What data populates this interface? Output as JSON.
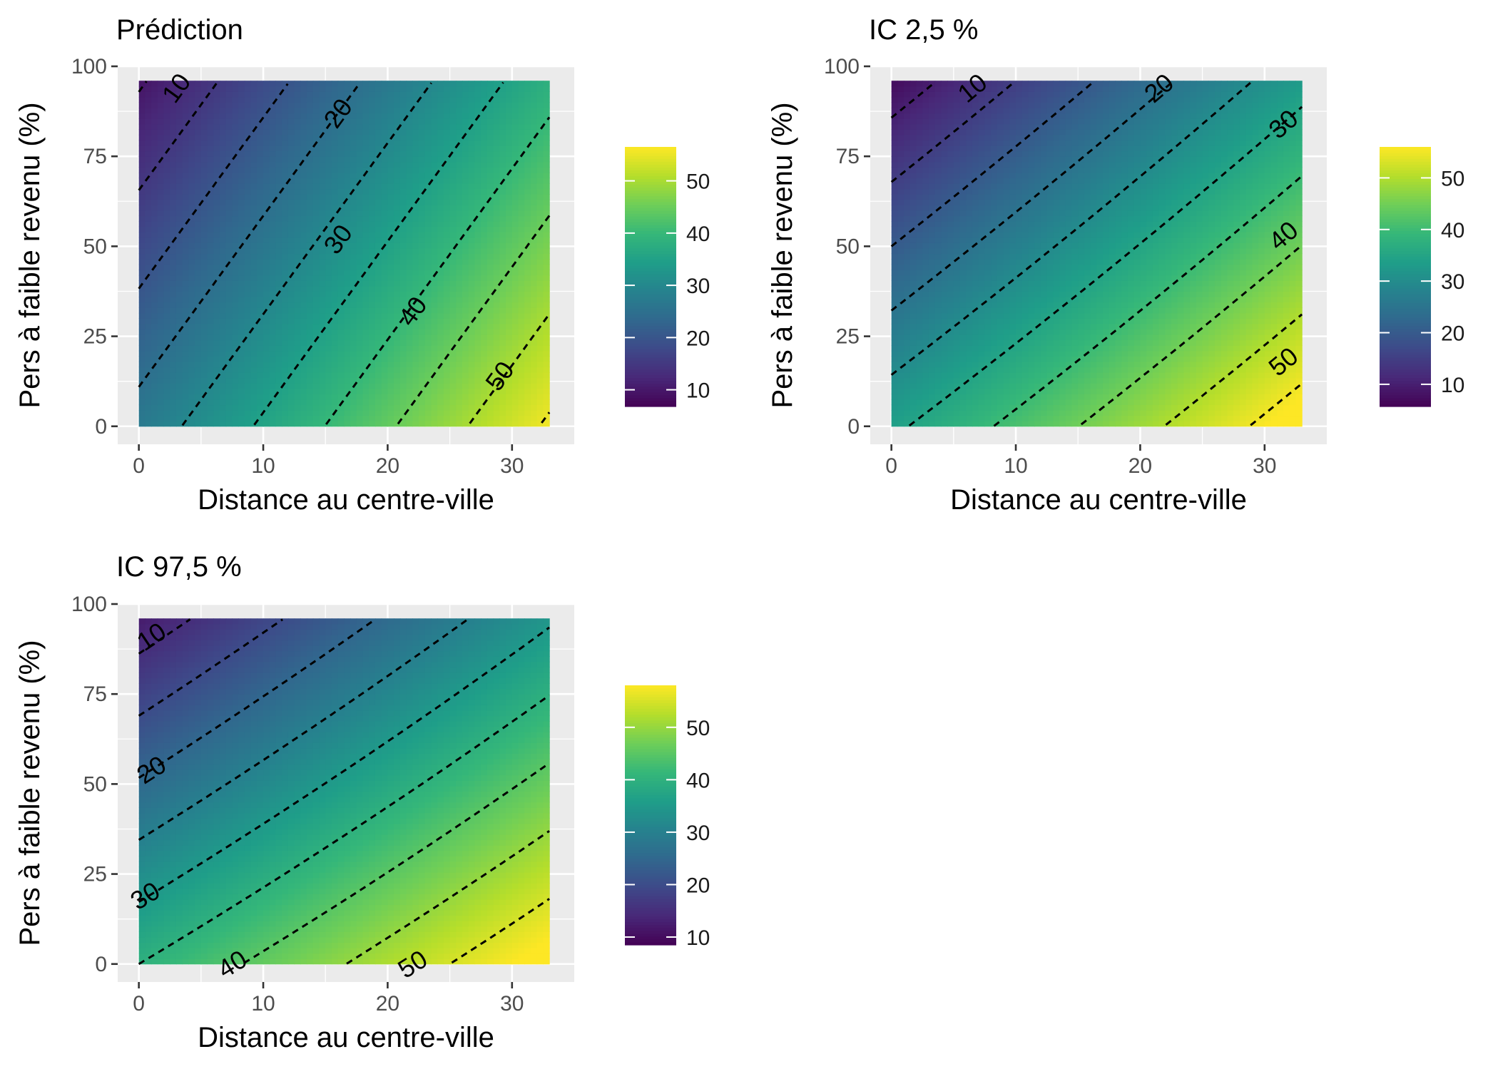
{
  "chart_data": [
    {
      "type": "heatmap",
      "title": "Prédiction",
      "xlabel": "Distance au centre-ville",
      "ylabel": "Pers à faible revenu (%)",
      "xlim": [
        -1.7,
        35
      ],
      "ylim": [
        -5,
        100
      ],
      "xticks": [
        0,
        10,
        20,
        30
      ],
      "yticks": [
        0,
        25,
        50,
        75,
        100
      ],
      "x_range": [
        0,
        33
      ],
      "y_range": [
        0,
        96
      ],
      "surface": {
        "base": 27,
        "per_x": 0.87,
        "per_y": -0.183,
        "curve": 0
      },
      "contour_levels": [
        10,
        15,
        20,
        25,
        30,
        35,
        40,
        45,
        50,
        55
      ],
      "contour_line_style": "dashed",
      "contour_labels": [
        {
          "text": "10",
          "x": 3,
          "y": 94
        },
        {
          "text": "20",
          "x": 16,
          "y": 87
        },
        {
          "text": "30",
          "x": 16,
          "y": 52
        },
        {
          "text": "40",
          "x": 22,
          "y": 32
        },
        {
          "text": "50",
          "x": 29,
          "y": 14
        }
      ],
      "legend": {
        "title": "",
        "ticks": [
          10,
          20,
          30,
          40,
          50
        ],
        "min": 6.8,
        "max": 56.5
      }
    },
    {
      "type": "heatmap",
      "title": "IC 2,5 %",
      "xlabel": "Distance au centre-ville",
      "ylabel": "Pers à faible revenu (%)",
      "xlim": [
        -1.7,
        35
      ],
      "ylim": [
        -5,
        100
      ],
      "xticks": [
        0,
        10,
        20,
        30
      ],
      "yticks": [
        0,
        25,
        50,
        75,
        100
      ],
      "x_range": [
        0,
        33
      ],
      "y_range": [
        0,
        96
      ],
      "surface": {
        "base": 34,
        "per_x": 0.73,
        "per_y": -0.28,
        "curve": 0.0006
      },
      "contour_levels": [
        10,
        15,
        20,
        25,
        30,
        35,
        40,
        45,
        50,
        55
      ],
      "contour_line_style": "dashed",
      "contour_labels": [
        {
          "text": "10",
          "x": 6.5,
          "y": 94
        },
        {
          "text": "20",
          "x": 21.5,
          "y": 94
        },
        {
          "text": "30",
          "x": 31.5,
          "y": 84
        },
        {
          "text": "40",
          "x": 31.5,
          "y": 53
        },
        {
          "text": "50",
          "x": 31.5,
          "y": 18
        }
      ],
      "legend": {
        "title": "",
        "ticks": [
          10,
          20,
          30,
          40,
          50
        ],
        "min": 5.7,
        "max": 56
      }
    },
    {
      "type": "heatmap",
      "title": "IC 97,5 %",
      "xlabel": "Distance au centre-ville",
      "ylabel": "Pers à faible revenu (%)",
      "xlim": [
        -1.7,
        35
      ],
      "ylim": [
        -5,
        100
      ],
      "xticks": [
        0,
        10,
        20,
        30
      ],
      "yticks": [
        0,
        25,
        50,
        75,
        100
      ],
      "x_range": [
        0,
        33
      ],
      "y_range": [
        0,
        96
      ],
      "surface": {
        "base": 40,
        "per_x": 0.6,
        "per_y": -0.29,
        "curve": 0.00075
      },
      "contour_levels": [
        10,
        15,
        20,
        25,
        30,
        35,
        40,
        45,
        50,
        55
      ],
      "contour_line_style": "dashed",
      "contour_labels": [
        {
          "text": "10",
          "x": 1,
          "y": 91
        },
        {
          "text": "20",
          "x": 1,
          "y": 54
        },
        {
          "text": "30",
          "x": 0.5,
          "y": 19
        },
        {
          "text": "40",
          "x": 7.5,
          "y": 0
        },
        {
          "text": "50",
          "x": 22,
          "y": 0
        }
      ],
      "legend": {
        "title": "",
        "ticks": [
          10,
          20,
          30,
          40,
          50
        ],
        "min": 8.5,
        "max": 58
      }
    }
  ],
  "colors": {
    "panel_background": "#ebebeb",
    "grid_line": "#ffffff",
    "contour_line": "#000000",
    "viridis": [
      "#440154",
      "#482878",
      "#3e4989",
      "#31688e",
      "#26828e",
      "#1f9e89",
      "#35b779",
      "#6ece58",
      "#b5de2b",
      "#fde725"
    ]
  }
}
